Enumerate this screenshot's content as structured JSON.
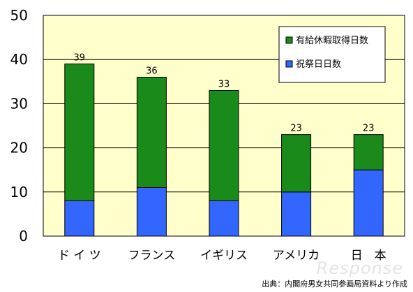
{
  "chart_data": {
    "type": "bar",
    "stacked": true,
    "categories": [
      "ド イ ツ",
      "フランス",
      "イギリス",
      "アメリカ",
      "日　本"
    ],
    "series": [
      {
        "name": "祝祭日日数",
        "values": [
          8,
          11,
          8,
          10,
          15
        ],
        "color": "#3366ff"
      },
      {
        "name": "有給休暇取得日数",
        "values": [
          31,
          25,
          25,
          13,
          8
        ],
        "color": "#1a8a1a"
      }
    ],
    "totals": [
      39,
      36,
      33,
      23,
      23
    ],
    "ylim": [
      0,
      50
    ],
    "yticks": [
      0,
      10,
      20,
      30,
      40,
      50
    ],
    "grid": true,
    "legend_position": "top-right",
    "plot_background": "#ffffcc",
    "title": "",
    "xlabel": "",
    "ylabel": ""
  },
  "source_note": "出典：内閣府男女共同参画局資料より作成",
  "watermark": "Response"
}
